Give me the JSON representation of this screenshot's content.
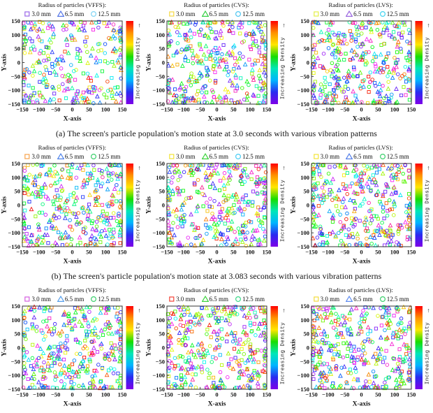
{
  "page": {
    "background": "#ffffff"
  },
  "captions": {
    "a": "(a) The screen's particle population's motion state at 3.0 seconds with various vibration patterns",
    "b": "(b) The screen's particle population's motion state at 3.083 seconds with various vibration patterns"
  },
  "axes": {
    "x_label": "X-axis",
    "y_label": "Y-axis",
    "x_ticks": [
      -150,
      -100,
      -50,
      0,
      50,
      100,
      150
    ],
    "y_ticks": [
      -150,
      -100,
      -50,
      0,
      50,
      100,
      150
    ],
    "x_range": [
      -150,
      150
    ],
    "y_range": [
      -150,
      150
    ],
    "grid": false
  },
  "colorbar": {
    "label": "Increasing Density",
    "arrow": "↑",
    "gradient_top_to_bottom": [
      "#ff0000",
      "#ff9100",
      "#ffe600",
      "#17dd00",
      "#00e6b8",
      "#00b4ff",
      "#2a2af0",
      "#7d00e8"
    ]
  },
  "chart_data": {
    "type": "scatter",
    "description": "Nine scatter plots (3 rows x 3 columns) of particle positions on a vibrating screen. Columns are vibration patterns VFFS, CVS, LVS; rows are time snapshots. Hundreds of unfilled markers (squares 3.0 mm, triangles 6.5 mm, circles 12.5 mm) are uniformly scattered over x,y in [-150,150], colored by a rainbow colormap encoding increasing local density.",
    "plots": [
      {
        "group": "a",
        "pattern": "VFFS",
        "title": "Radius of particles (VFFS):",
        "seed": 17,
        "series": [
          {
            "shape": "square",
            "label": "3.0 mm",
            "legend_color": "#9966e8",
            "count": 100
          },
          {
            "shape": "triangle",
            "label": "6.5 mm",
            "legend_color": "#5577e8",
            "count": 100
          },
          {
            "shape": "circle",
            "label": "12.5 mm",
            "legend_color": "#7fd4f5",
            "count": 100
          }
        ]
      },
      {
        "group": "a",
        "pattern": "CVS",
        "title": "Radius of particles (CVS):",
        "seed": 42,
        "series": [
          {
            "shape": "square",
            "label": "3.0 mm",
            "legend_color": "#f5d942",
            "count": 120
          },
          {
            "shape": "triangle",
            "label": "6.5 mm",
            "legend_color": "#35d045",
            "count": 120
          },
          {
            "shape": "circle",
            "label": "12.5 mm",
            "legend_color": "#4fc7f2",
            "count": 120
          }
        ]
      },
      {
        "group": "a",
        "pattern": "LVS",
        "title": "Radius of particles (LVS):",
        "seed": 63,
        "series": [
          {
            "shape": "square",
            "label": "3.0 mm",
            "legend_color": "#e3ef45",
            "count": 125
          },
          {
            "shape": "triangle",
            "label": "6.5 mm",
            "legend_color": "#9a66e0",
            "count": 125
          },
          {
            "shape": "circle",
            "label": "12.5 mm",
            "legend_color": "#41d4f0",
            "count": 125
          }
        ]
      },
      {
        "group": "b",
        "pattern": "VFFS",
        "title": "Radius of particles (VFFS):",
        "seed": 84,
        "series": [
          {
            "shape": "square",
            "label": "3.0 mm",
            "legend_color": "#f7a24b",
            "count": 120
          },
          {
            "shape": "triangle",
            "label": "6.5 mm",
            "legend_color": "#4f83ea",
            "count": 120
          },
          {
            "shape": "circle",
            "label": "12.5 mm",
            "legend_color": "#3ed06e",
            "count": 120
          }
        ]
      },
      {
        "group": "b",
        "pattern": "CVS",
        "title": "Radius of particles (CVS):",
        "seed": 105,
        "series": [
          {
            "shape": "square",
            "label": "3.0 mm",
            "legend_color": "#f2e437",
            "count": 120
          },
          {
            "shape": "triangle",
            "label": "6.5 mm",
            "legend_color": "#3ed43e",
            "count": 120
          },
          {
            "shape": "circle",
            "label": "12.5 mm",
            "legend_color": "#49cdf5",
            "count": 120
          }
        ]
      },
      {
        "group": "b",
        "pattern": "LVS",
        "title": "Radius of particles (LVS):",
        "seed": 126,
        "series": [
          {
            "shape": "square",
            "label": "3.0 mm",
            "legend_color": "#f2e437",
            "count": 120
          },
          {
            "shape": "triangle",
            "label": "6.5 mm",
            "legend_color": "#5580ea",
            "count": 120
          },
          {
            "shape": "circle",
            "label": "12.5 mm",
            "legend_color": "#3ed06e",
            "count": 120
          }
        ]
      },
      {
        "group": "c",
        "pattern": "VFFS",
        "title": "Radius of particles (VFFS):",
        "seed": 147,
        "series": [
          {
            "shape": "square",
            "label": "3.0 mm",
            "legend_color": "#d45fe0",
            "count": 120
          },
          {
            "shape": "triangle",
            "label": "6.5 mm",
            "legend_color": "#58a0ec",
            "count": 120
          },
          {
            "shape": "circle",
            "label": "12.5 mm",
            "legend_color": "#3ed06e",
            "count": 120
          }
        ]
      },
      {
        "group": "c",
        "pattern": "CVS",
        "title": "Radius of particles (CVS):",
        "seed": 168,
        "series": [
          {
            "shape": "square",
            "label": "3.0 mm",
            "legend_color": "#f24438",
            "count": 125
          },
          {
            "shape": "triangle",
            "label": "6.5 mm",
            "legend_color": "#3ed43e",
            "count": 125
          },
          {
            "shape": "circle",
            "label": "12.5 mm",
            "legend_color": "#3ed98a",
            "count": 125
          }
        ]
      },
      {
        "group": "c",
        "pattern": "LVS",
        "title": "Radius of particles (LVS):",
        "seed": 189,
        "series": [
          {
            "shape": "square",
            "label": "3.0 mm",
            "legend_color": "#f2dc3c",
            "count": 125
          },
          {
            "shape": "triangle",
            "label": "6.5 mm",
            "legend_color": "#5f8df2",
            "count": 125
          },
          {
            "shape": "circle",
            "label": "12.5 mm",
            "legend_color": "#3ed06e",
            "count": 125
          }
        ]
      }
    ],
    "point_distribution": "uniform random over x:[-150,150], y:[-150,150] with clustering along the box edges; marker color = random rainbow hue (density colormap)"
  }
}
